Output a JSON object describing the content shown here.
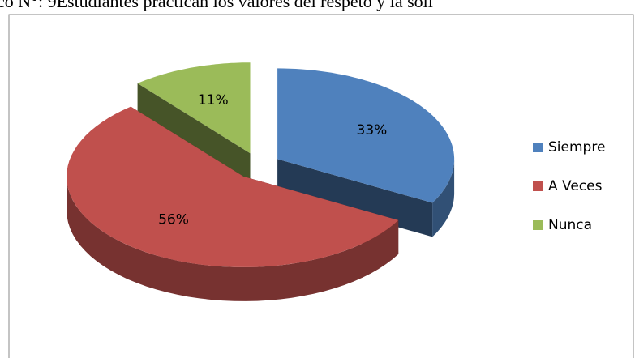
{
  "chart_data": {
    "type": "pie",
    "title": "co N°: 9Estudiantes practican los valores del respeto y la soli",
    "categories": [
      "Siempre",
      "A Veces",
      "Nunca"
    ],
    "values": [
      33,
      56,
      11
    ],
    "value_labels": [
      "33%",
      "56%",
      "11%"
    ],
    "colors": [
      "#4f81bd",
      "#c0504d",
      "#9bbb59"
    ],
    "legend": "right"
  }
}
